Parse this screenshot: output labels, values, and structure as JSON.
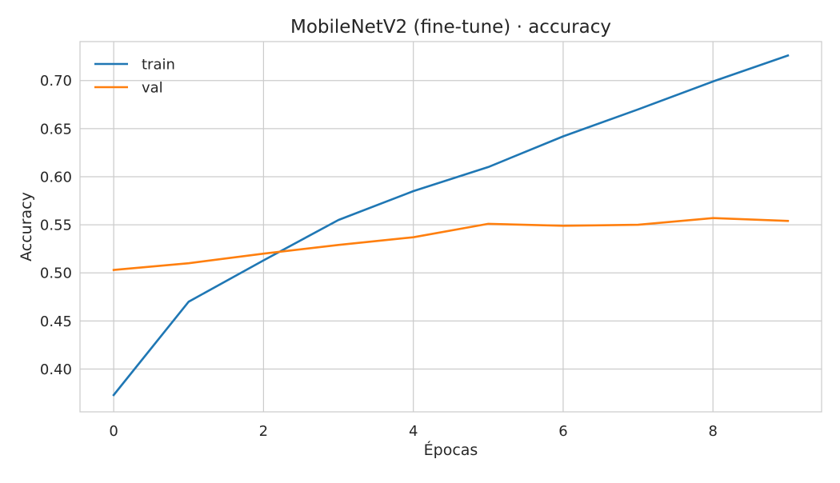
{
  "chart_data": {
    "type": "line",
    "title": "MobileNetV2 (fine-tune) · accuracy",
    "xlabel": "Épocas",
    "ylabel": "Accuracy",
    "x": [
      0,
      1,
      2,
      3,
      4,
      5,
      6,
      7,
      8,
      9
    ],
    "xlim": [
      -0.45,
      9.45
    ],
    "ylim": [
      0.3555,
      0.7405
    ],
    "xticks": [
      0,
      2,
      4,
      6,
      8
    ],
    "yticks": [
      0.4,
      0.45,
      0.5,
      0.55,
      0.6,
      0.65,
      0.7
    ],
    "xtick_labels": [
      "0",
      "2",
      "4",
      "6",
      "8"
    ],
    "ytick_labels": [
      "0.40",
      "0.45",
      "0.50",
      "0.55",
      "0.60",
      "0.65",
      "0.70"
    ],
    "grid": true,
    "legend_position": "top-left",
    "series": [
      {
        "name": "train",
        "color": "#1f77b4",
        "values": [
          0.373,
          0.47,
          0.513,
          0.555,
          0.585,
          0.61,
          0.642,
          0.67,
          0.699,
          0.726
        ]
      },
      {
        "name": "val",
        "color": "#ff7f0e",
        "values": [
          0.503,
          0.51,
          0.52,
          0.529,
          0.537,
          0.551,
          0.549,
          0.55,
          0.557,
          0.554
        ]
      }
    ]
  }
}
